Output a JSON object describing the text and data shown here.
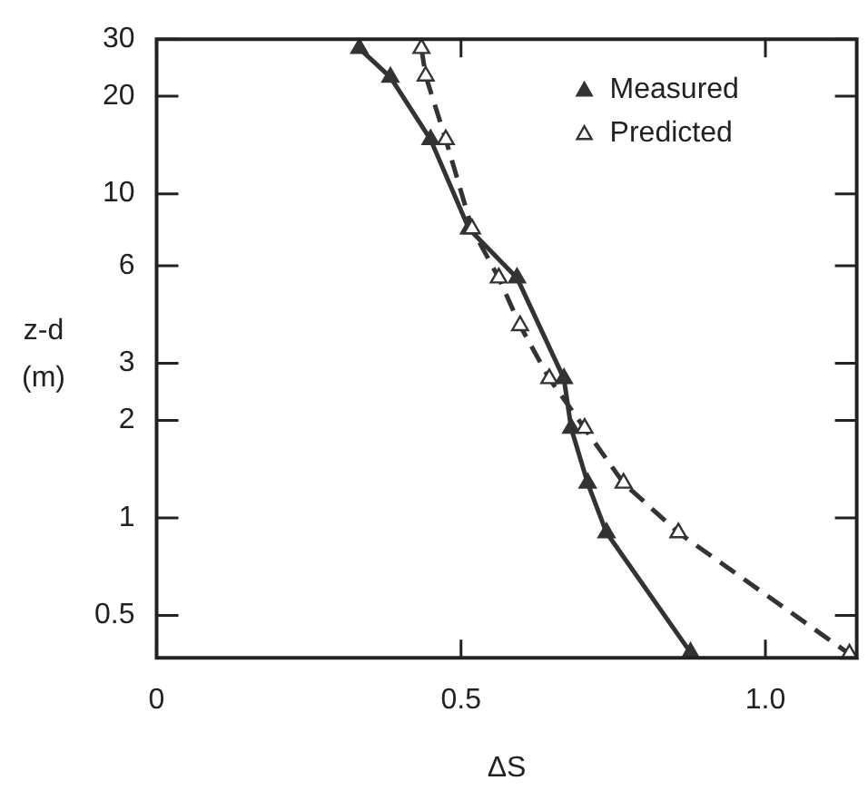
{
  "chart_data": {
    "type": "line",
    "xlabel": "ΔS",
    "ylabel": "z-d (m)",
    "log": "y",
    "xlim": [
      0,
      1.15
    ],
    "xticks": [
      0,
      0.5,
      {
        "value": 1,
        "label": "1.0"
      }
    ],
    "ylim": [
      0.37,
      30
    ],
    "yticks": [
      0.5,
      1,
      2,
      3,
      6,
      10,
      20,
      30
    ],
    "grid": false,
    "legend": "top right",
    "marker": "triangle",
    "series": [
      {
        "name": "Measured",
        "color": "#333333",
        "line_style": "solid",
        "x": [
          0.333,
          0.384,
          0.45,
          0.513,
          0.592,
          0.669,
          0.681,
          0.708,
          0.739,
          0.877
        ],
        "values": [
          28.1,
          22.9,
          14.7,
          7.8,
          5.5,
          2.69,
          1.89,
          1.28,
          0.9,
          0.384
        ]
      },
      {
        "name": "Predicted",
        "color": "#333333",
        "line_style": "dashed",
        "x": [
          0.435,
          0.442,
          0.475,
          0.518,
          0.562,
          0.597,
          0.645,
          0.703,
          0.767,
          0.857,
          1.138
        ],
        "values": [
          28.1,
          23.1,
          14.7,
          7.8,
          5.5,
          3.92,
          2.69,
          1.89,
          1.28,
          0.9,
          0.38
        ]
      }
    ]
  }
}
